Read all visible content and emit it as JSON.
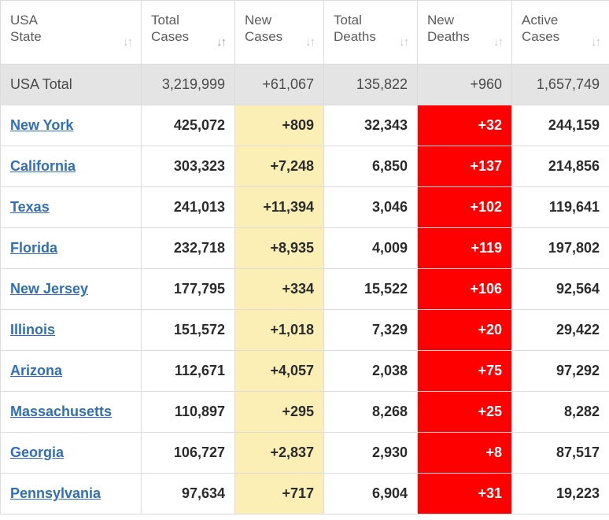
{
  "columns": [
    {
      "line1": "USA",
      "line2": "State"
    },
    {
      "line1": "Total",
      "line2": "Cases"
    },
    {
      "line1": "New",
      "line2": "Cases"
    },
    {
      "line1": "Total",
      "line2": "Deaths"
    },
    {
      "line1": "New",
      "line2": "Deaths"
    },
    {
      "line1": "Active",
      "line2": "Cases"
    }
  ],
  "sort_icon": "↓↑",
  "total": {
    "label": "USA Total",
    "total_cases": "3,219,999",
    "new_cases": "+61,067",
    "total_deaths": "135,822",
    "new_deaths": "+960",
    "active_cases": "1,657,749"
  },
  "rows": [
    {
      "state": "New York",
      "total_cases": "425,072",
      "new_cases": "+809",
      "total_deaths": "32,343",
      "new_deaths": "+32",
      "active_cases": "244,159"
    },
    {
      "state": "California",
      "total_cases": "303,323",
      "new_cases": "+7,248",
      "total_deaths": "6,850",
      "new_deaths": "+137",
      "active_cases": "214,856"
    },
    {
      "state": "Texas",
      "total_cases": "241,013",
      "new_cases": "+11,394",
      "total_deaths": "3,046",
      "new_deaths": "+102",
      "active_cases": "119,641"
    },
    {
      "state": "Florida",
      "total_cases": "232,718",
      "new_cases": "+8,935",
      "total_deaths": "4,009",
      "new_deaths": "+119",
      "active_cases": "197,802"
    },
    {
      "state": "New Jersey",
      "total_cases": "177,795",
      "new_cases": "+334",
      "total_deaths": "15,522",
      "new_deaths": "+106",
      "active_cases": "92,564"
    },
    {
      "state": "Illinois",
      "total_cases": "151,572",
      "new_cases": "+1,018",
      "total_deaths": "7,329",
      "new_deaths": "+20",
      "active_cases": "29,422"
    },
    {
      "state": "Arizona",
      "total_cases": "112,671",
      "new_cases": "+4,057",
      "total_deaths": "2,038",
      "new_deaths": "+75",
      "active_cases": "97,292"
    },
    {
      "state": "Massachusetts",
      "total_cases": "110,897",
      "new_cases": "+295",
      "total_deaths": "8,268",
      "new_deaths": "+25",
      "active_cases": "8,282"
    },
    {
      "state": "Georgia",
      "total_cases": "106,727",
      "new_cases": "+2,837",
      "total_deaths": "2,930",
      "new_deaths": "+8",
      "active_cases": "87,517"
    },
    {
      "state": "Pennsylvania",
      "total_cases": "97,634",
      "new_cases": "+717",
      "total_deaths": "6,904",
      "new_deaths": "+31",
      "active_cases": "19,223"
    }
  ]
}
